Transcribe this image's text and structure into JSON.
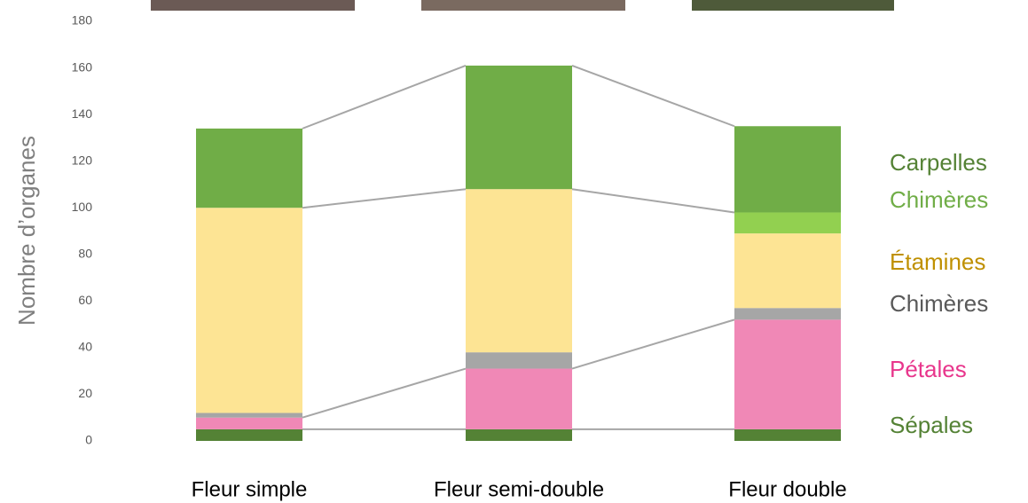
{
  "chart_data": {
    "type": "stacked_bar",
    "y_label": "Nombre d’organes",
    "categories": [
      "Fleur simple",
      "Fleur semi-double",
      "Fleur double"
    ],
    "series": [
      {
        "name": "Sépales",
        "color": "#548235",
        "label_color": "#548235",
        "values": [
          5,
          5,
          5
        ]
      },
      {
        "name": "Pétales",
        "color": "#f088b6",
        "label_color": "#e8368c",
        "values": [
          5,
          26,
          47
        ]
      },
      {
        "name": "Chimères",
        "color": "#a6a6a6",
        "label_color": "#595959",
        "values": [
          2,
          7,
          5
        ]
      },
      {
        "name": "Étamines",
        "color": "#fde494",
        "label_color": "#bf9000",
        "values": [
          88,
          70,
          32
        ]
      },
      {
        "name": "Chimères",
        "color": "#92d050",
        "label_color": "#70ad47",
        "values": [
          0,
          0,
          9
        ]
      },
      {
        "name": "Carpelles",
        "color": "#70ad47",
        "label_color": "#548235",
        "values": [
          34,
          53,
          37
        ]
      }
    ],
    "ylim": [
      0,
      180
    ],
    "yticks": [
      0,
      20,
      40,
      60,
      80,
      100,
      120,
      140,
      160,
      180
    ],
    "grid": false
  }
}
